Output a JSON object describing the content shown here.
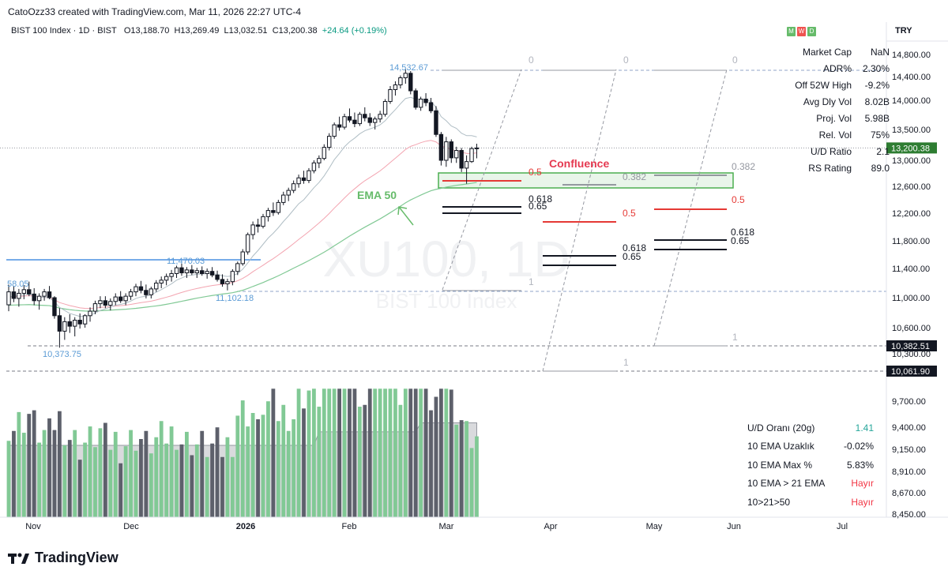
{
  "header": {
    "text": "CatoOzz33 created with TradingView.com, Mar 11, 2026 22:27 UTC-4"
  },
  "legend": {
    "symbol": "BIST 100 Index · 1D · BIST",
    "o": "O13,188.70",
    "h": "H13,269.49",
    "l": "L13,032.51",
    "c": "C13,200.38",
    "chg": "+24.64 (+0.19%)"
  },
  "mwd": [
    "M",
    "W",
    "D"
  ],
  "currency": "TRY",
  "stats": [
    {
      "k": "Market Cap",
      "v": "NaN",
      "color": "#131722"
    },
    {
      "k": "ADR%",
      "v": "2.30%",
      "color": "#131722"
    },
    {
      "k": "Off 52W High",
      "v": "-9.2%",
      "color": "#131722"
    },
    {
      "k": "Avg Dly Vol",
      "v": "8.02B",
      "color": "#131722"
    },
    {
      "k": "Proj. Vol",
      "v": "5.98B",
      "color": "#131722"
    },
    {
      "k": "Rel. Vol",
      "v": "75%",
      "color": "#131722"
    },
    {
      "k": "U/D Ratio",
      "v": "2.1",
      "color": "#131722"
    },
    {
      "k": "RS Rating",
      "v": "89.0",
      "color": "#131722"
    }
  ],
  "stats2": [
    {
      "k": "U/D Oranı (20g)",
      "v": "1.41",
      "color": "#26a69a"
    },
    {
      "k": "10 EMA Uzaklık",
      "v": "-0.02%",
      "color": "#131722"
    },
    {
      "k": "10 EMA Max %",
      "v": "5.83%",
      "color": "#131722"
    },
    {
      "k": "10 EMA > 21 EMA",
      "v": "Hayır",
      "color": "#f23645"
    },
    {
      "k": "10>21>50",
      "v": "Hayır",
      "color": "#f23645"
    }
  ],
  "footer": {
    "brand": "TradingView"
  },
  "colors": {
    "up": "#131722",
    "down": "#131722",
    "accent": "#2962ff",
    "green": "#4caf50",
    "red": "#f23645",
    "ema50": "#66bb6a",
    "ema21": "#f3a4b0"
  },
  "chart_data": {
    "type": "line",
    "watermark": "XU100, 1D",
    "watermark_sub": "BIST 100 Index",
    "price_axis_labels": [
      "14,800.00",
      "14,400.00",
      "14,000.00",
      "13,500.00",
      "13,000.00",
      "12,600.00",
      "12,200.00",
      "11,800.00",
      "11,400.00",
      "11,000.00",
      "10,600.00",
      "10,300.00",
      "9,700.00",
      "9,400.00",
      "9,150.00",
      "8,910.00",
      "8,670.00",
      "8,450.00"
    ],
    "last_price": "13,200.38",
    "level_tags": [
      "10,382.51",
      "10,061.90"
    ],
    "time_axis": [
      {
        "label": "Nov",
        "bold": false
      },
      {
        "label": "Dec",
        "bold": false
      },
      {
        "label": "2026",
        "bold": true
      },
      {
        "label": "Feb",
        "bold": false
      },
      {
        "label": "Mar",
        "bold": false
      },
      {
        "label": "Apr",
        "bold": false
      },
      {
        "label": "May",
        "bold": false
      },
      {
        "label": "Jun",
        "bold": false
      },
      {
        "label": "Jul",
        "bold": false
      }
    ],
    "price_labels": {
      "high": "14,532.67",
      "left": "58.05",
      "low": "10,373.75",
      "mid_high": "11,470.03",
      "mid_low": "11,102.18"
    },
    "annotations": {
      "confluence": "Confluence",
      "ema50": "EMA 50"
    },
    "fib_labels": {
      "zero": "0",
      "one": "1",
      "f0382": "0.382",
      "f05": "0.5",
      "f0618": "0.618",
      "f065": "0.65"
    },
    "candles": [
      [
        10905,
        11180,
        10820,
        11080
      ],
      [
        11080,
        11160,
        10940,
        10990
      ],
      [
        10990,
        11120,
        10880,
        11060
      ],
      [
        11060,
        11170,
        10980,
        11110
      ],
      [
        11110,
        11220,
        11020,
        11050
      ],
      [
        11050,
        11130,
        10900,
        10960
      ],
      [
        10960,
        11060,
        10840,
        11020
      ],
      [
        11020,
        11120,
        10960,
        11080
      ],
      [
        11080,
        11160,
        10980,
        11000
      ],
      [
        11000,
        11020,
        10720,
        10760
      ],
      [
        10760,
        10860,
        10370,
        10560
      ],
      [
        10560,
        10740,
        10460,
        10680
      ],
      [
        10680,
        10780,
        10540,
        10620
      ],
      [
        10620,
        10740,
        10500,
        10700
      ],
      [
        10700,
        10790,
        10590,
        10650
      ],
      [
        10650,
        10780,
        10600,
        10760
      ],
      [
        10760,
        10870,
        10680,
        10820
      ],
      [
        10820,
        10960,
        10780,
        10920
      ],
      [
        10920,
        11020,
        10860,
        10960
      ],
      [
        10960,
        11020,
        10860,
        10900
      ],
      [
        10900,
        10990,
        10830,
        10950
      ],
      [
        10950,
        11060,
        10900,
        11010
      ],
      [
        11010,
        11090,
        10930,
        10960
      ],
      [
        10960,
        11060,
        10900,
        11020
      ],
      [
        11020,
        11120,
        10970,
        11080
      ],
      [
        11080,
        11190,
        11020,
        11150
      ],
      [
        11150,
        11230,
        11060,
        11100
      ],
      [
        11100,
        11180,
        10990,
        11040
      ],
      [
        11040,
        11150,
        10990,
        11120
      ],
      [
        11120,
        11240,
        11080,
        11200
      ],
      [
        11200,
        11290,
        11130,
        11240
      ],
      [
        11240,
        11330,
        11170,
        11290
      ],
      [
        11290,
        11380,
        11220,
        11330
      ],
      [
        11330,
        11440,
        11270,
        11410
      ],
      [
        11410,
        11470,
        11300,
        11340
      ],
      [
        11340,
        11420,
        11270,
        11380
      ],
      [
        11380,
        11450,
        11310,
        11340
      ],
      [
        11340,
        11410,
        11270,
        11370
      ],
      [
        11370,
        11430,
        11300,
        11330
      ],
      [
        11330,
        11400,
        11260,
        11360
      ],
      [
        11360,
        11420,
        11280,
        11310
      ],
      [
        11310,
        11370,
        11220,
        11250
      ],
      [
        11250,
        11320,
        11150,
        11190
      ],
      [
        11190,
        11260,
        11100,
        11220
      ],
      [
        11220,
        11390,
        11170,
        11360
      ],
      [
        11360,
        11500,
        11310,
        11470
      ],
      [
        11470,
        11680,
        11440,
        11640
      ],
      [
        11640,
        11920,
        11600,
        11890
      ],
      [
        11890,
        12080,
        11820,
        12030
      ],
      [
        12030,
        12120,
        11920,
        12010
      ],
      [
        12010,
        12190,
        11980,
        12150
      ],
      [
        12150,
        12280,
        12080,
        12240
      ],
      [
        12240,
        12360,
        12160,
        12210
      ],
      [
        12210,
        12400,
        12180,
        12360
      ],
      [
        12360,
        12520,
        12320,
        12470
      ],
      [
        12470,
        12580,
        12380,
        12540
      ],
      [
        12540,
        12690,
        12500,
        12640
      ],
      [
        12640,
        12780,
        12580,
        12730
      ],
      [
        12730,
        12840,
        12640,
        12690
      ],
      [
        12690,
        12880,
        12650,
        12840
      ],
      [
        12840,
        13000,
        12800,
        12960
      ],
      [
        12960,
        13080,
        12880,
        13030
      ],
      [
        13030,
        13260,
        13000,
        13210
      ],
      [
        13210,
        13440,
        13160,
        13390
      ],
      [
        13390,
        13620,
        13350,
        13580
      ],
      [
        13580,
        13720,
        13480,
        13540
      ],
      [
        13540,
        13770,
        13500,
        13720
      ],
      [
        13720,
        13860,
        13620,
        13660
      ],
      [
        13660,
        13790,
        13540,
        13600
      ],
      [
        13600,
        13800,
        13560,
        13760
      ],
      [
        13760,
        13880,
        13640,
        13700
      ],
      [
        13700,
        13780,
        13560,
        13620
      ],
      [
        13620,
        13720,
        13500,
        13680
      ],
      [
        13680,
        13820,
        13620,
        13760
      ],
      [
        13760,
        14020,
        13720,
        13980
      ],
      [
        13980,
        14240,
        13940,
        14180
      ],
      [
        14180,
        14320,
        14080,
        14260
      ],
      [
        14260,
        14420,
        14200,
        14380
      ],
      [
        14380,
        14530,
        14280,
        14460
      ],
      [
        14460,
        14500,
        14100,
        14160
      ],
      [
        14160,
        14200,
        13840,
        13880
      ],
      [
        13880,
        14060,
        13820,
        14020
      ],
      [
        14020,
        14120,
        13900,
        13960
      ],
      [
        13960,
        14040,
        13780,
        13820
      ],
      [
        13820,
        13900,
        13380,
        13420
      ],
      [
        13420,
        13460,
        12920,
        13000
      ],
      [
        13000,
        13380,
        12900,
        13300
      ],
      [
        13300,
        13340,
        12960,
        13040
      ],
      [
        13040,
        13220,
        12960,
        13160
      ],
      [
        13160,
        13200,
        12820,
        12880
      ],
      [
        12880,
        13080,
        12640,
        12980
      ],
      [
        12980,
        13220,
        12960,
        13190
      ],
      [
        13188,
        13269,
        13032,
        13200
      ]
    ],
    "ema21": [
      11010,
      11012,
      11016,
      11022,
      11028,
      11020,
      11010,
      11004,
      11000,
      10972,
      10935,
      10915,
      10895,
      10880,
      10865,
      10858,
      10855,
      10862,
      10870,
      10876,
      10882,
      10888,
      10894,
      10900,
      10910,
      10922,
      10934,
      10944,
      10954,
      10970,
      10988,
      11006,
      11026,
      11050,
      11072,
      11092,
      11110,
      11126,
      11140,
      11154,
      11166,
      11176,
      11184,
      11194,
      11208,
      11232,
      11264,
      11306,
      11356,
      11400,
      11446,
      11496,
      11542,
      11594,
      11648,
      11702,
      11760,
      11820,
      11876,
      11934,
      11996,
      12058,
      12124,
      12196,
      12276,
      12350,
      12426,
      12500,
      12564,
      12628,
      12686,
      12736,
      12786,
      12838,
      12900,
      12966,
      13034,
      13104,
      13176,
      13226,
      13254,
      13286,
      13310,
      13324,
      13298,
      13234,
      13208,
      13174,
      13156,
      13130,
      13112,
      13110,
      13120
    ],
    "ema10": [
      11010,
      11020,
      11030,
      11040,
      11050,
      11030,
      11010,
      11005,
      10998,
      10945,
      10870,
      10830,
      10790,
      10770,
      10750,
      10752,
      10765,
      10795,
      10830,
      10852,
      10875,
      10900,
      10910,
      10928,
      10955,
      10990,
      11010,
      11020,
      11040,
      11075,
      11110,
      11150,
      11190,
      11240,
      11270,
      11300,
      11310,
      11320,
      11325,
      11330,
      11330,
      11320,
      11300,
      11290,
      11300,
      11330,
      11390,
      11480,
      11580,
      11660,
      11750,
      11840,
      11910,
      11990,
      12080,
      12160,
      12250,
      12340,
      12400,
      12490,
      12580,
      12660,
      12760,
      12880,
      13010,
      13110,
      13220,
      13300,
      13360,
      13430,
      13480,
      13510,
      13540,
      13580,
      13650,
      13750,
      13840,
      13940,
      14030,
      14050,
      14020,
      14020,
      14010,
      13980,
      13880,
      13720,
      13650,
      13560,
      13520,
      13440,
      13400,
      13400,
      13380
    ],
    "ema50": [
      10900,
      10902,
      10904,
      10906,
      10908,
      10904,
      10900,
      10897,
      10894,
      10880,
      10862,
      10850,
      10840,
      10832,
      10826,
      10822,
      10820,
      10822,
      10826,
      10830,
      10834,
      10838,
      10842,
      10846,
      10852,
      10858,
      10866,
      10874,
      10882,
      10890,
      10900,
      10912,
      10924,
      10938,
      10952,
      10966,
      10980,
      10994,
      11006,
      11018,
      11030,
      11040,
      11050,
      11058,
      11068,
      11084,
      11102,
      11126,
      11154,
      11180,
      11208,
      11238,
      11268,
      11300,
      11334,
      11368,
      11404,
      11440,
      11476,
      11514,
      11554,
      11594,
      11636,
      11680,
      11728,
      11774,
      11822,
      11868,
      11912,
      11956,
      11998,
      12038,
      12078,
      12118,
      12162,
      12208,
      12256,
      12304,
      12354,
      12398,
      12434,
      12470,
      12504,
      12534,
      12556,
      12570,
      12588,
      12602,
      12616,
      12626,
      12636,
      12648,
      12660
    ],
    "volumes": [
      9300,
      9250,
      9300,
      9350,
      9400,
      9280,
      9200,
      9180,
      9150,
      9300,
      9350,
      9250,
      9150,
      9100,
      9050,
      9080,
      9100,
      9150,
      9200,
      9100,
      9080,
      9120,
      9050,
      9080,
      9100,
      9150,
      9120,
      9050,
      9080,
      9100,
      9120,
      9150,
      9180,
      9200,
      9100,
      9080,
      9100,
      9060,
      9050,
      9040,
      9030,
      9050,
      9000,
      9060,
      9120,
      9180,
      9250,
      9300,
      9350,
      9180,
      9150,
      9200,
      9250,
      9220,
      9300,
      9350,
      9380,
      9400,
      9320,
      9420,
      9500,
      9480,
      9600,
      9750,
      9800,
      9600,
      9650,
      9620,
      9550,
      9580,
      9500,
      9450,
      9520,
      9600,
      9700,
      9650,
      9620,
      9700,
      9750,
      9800,
      9650,
      9600,
      9650,
      9500,
      9550,
      9400,
      9500,
      9350,
      9300,
      9250,
      9200,
      9180,
      9150
    ],
    "resistance_line": {
      "price": 11470,
      "label": "11,470.03"
    }
  }
}
